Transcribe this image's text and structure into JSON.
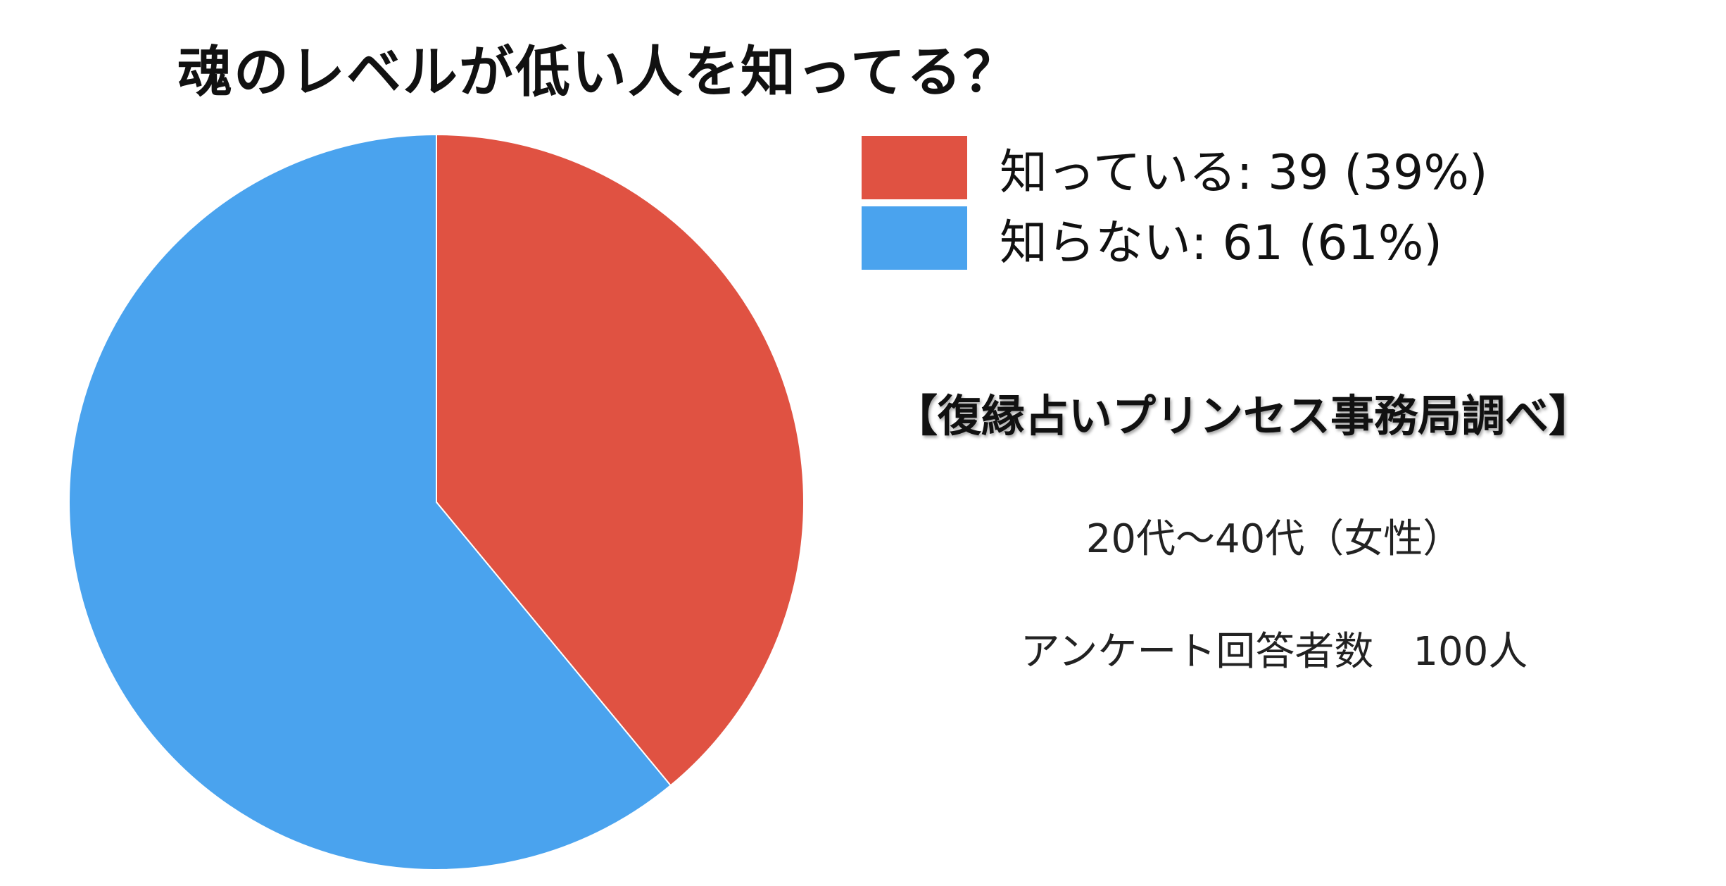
{
  "chart_data": {
    "type": "pie",
    "title": "魂のレベルが低い人を知ってる？",
    "slices": [
      {
        "label": "知っている",
        "value": 39,
        "percent": 39,
        "color": "#e05242",
        "legend": "知っている: 39 (39%)"
      },
      {
        "label": "知らない",
        "value": 61,
        "percent": 61,
        "color": "#4aa3ee",
        "legend": "知らない: 61 (61%)"
      }
    ],
    "start_angle_deg": 0,
    "direction": "clockwise",
    "legend_position": "top-right"
  },
  "notes": {
    "source": "【復縁占いプリンセス事務局調べ】",
    "age_range": "20代〜40代（女性）",
    "respondents": "アンケート回答者数　100人"
  }
}
